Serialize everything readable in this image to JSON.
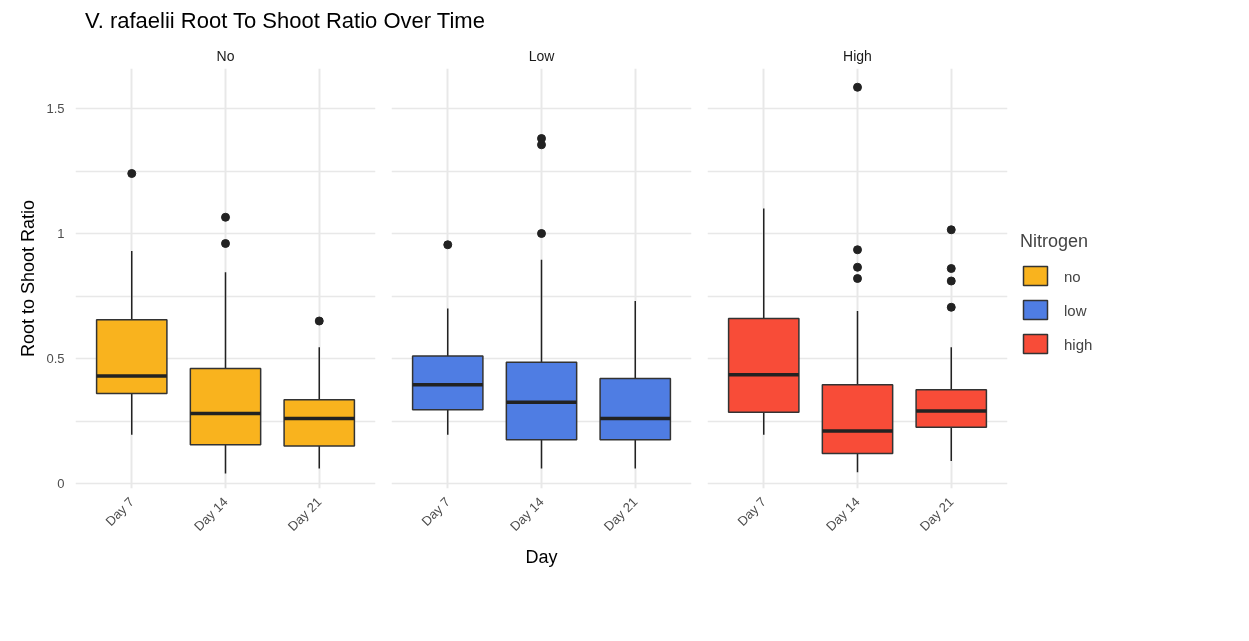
{
  "chart_data": [
    {
      "type": "box",
      "title": "V. rafaelii Root To Shoot Ratio Over Time",
      "subtitle": "No",
      "ylabel": "Root to Shoot Ratio",
      "categories": [
        "Day 7",
        "Day 14",
        "Day 21"
      ],
      "ylim": [
        -0.02,
        1.66
      ],
      "yticks": [
        0,
        {
          "value": 0.25,
          "label": null
        },
        0.5,
        {
          "value": 0.75,
          "label": null
        },
        1,
        {
          "value": 1.25,
          "label": null
        },
        1.5
      ],
      "grid": true,
      "series": [
        {
          "name": "no",
          "color": "#f9b31e",
          "boxes": [
            {
              "low": 0.195,
              "q1": 0.36,
              "median": 0.43,
              "q3": 0.655,
              "high": 0.93,
              "outliers": [
                1.24
              ]
            },
            {
              "low": 0.04,
              "q1": 0.155,
              "median": 0.28,
              "q3": 0.46,
              "high": 0.845,
              "outliers": [
                0.96,
                1.065
              ]
            },
            {
              "low": 0.06,
              "q1": 0.15,
              "median": 0.26,
              "q3": 0.335,
              "high": 0.545,
              "outliers": [
                0.65
              ]
            }
          ]
        }
      ]
    },
    {
      "type": "box",
      "subtitle": "Low",
      "xlabel": "Day",
      "categories": [
        "Day 7",
        "Day 14",
        "Day 21"
      ],
      "ylim": [
        -0.02,
        1.66
      ],
      "yticks": [
        0,
        {
          "value": 0.25,
          "label": null
        },
        0.5,
        {
          "value": 0.75,
          "label": null
        },
        1,
        {
          "value": 1.25,
          "label": null
        },
        1.5
      ],
      "grid": true,
      "tick_labels": "x",
      "series": [
        {
          "name": "low",
          "color": "#4f7de3",
          "boxes": [
            {
              "low": 0.195,
              "q1": 0.295,
              "median": 0.395,
              "q3": 0.51,
              "high": 0.7,
              "outliers": [
                0.955
              ]
            },
            {
              "low": 0.06,
              "q1": 0.175,
              "median": 0.325,
              "q3": 0.485,
              "high": 0.895,
              "outliers": [
                1.0,
                1.355,
                1.38
              ]
            },
            {
              "low": 0.06,
              "q1": 0.175,
              "median": 0.26,
              "q3": 0.42,
              "high": 0.73
            }
          ]
        }
      ]
    },
    {
      "type": "box",
      "subtitle": "High",
      "legend_title": "Nitrogen",
      "legend": "right",
      "categories": [
        "Day 7",
        "Day 14",
        "Day 21"
      ],
      "ylim": [
        -0.02,
        1.66
      ],
      "yticks": [
        0,
        {
          "value": 0.25,
          "label": null
        },
        0.5,
        {
          "value": 0.75,
          "label": null
        },
        1,
        {
          "value": 1.25,
          "label": null
        },
        1.5
      ],
      "grid": true,
      "tick_labels": "x",
      "series": [
        {
          "name": "high",
          "color": "#f84c38",
          "boxes": [
            {
              "low": 0.195,
              "q1": 0.285,
              "median": 0.435,
              "q3": 0.66,
              "high": 1.1
            },
            {
              "low": 0.045,
              "q1": 0.12,
              "median": 0.21,
              "q3": 0.395,
              "high": 0.69,
              "outliers": [
                0.82,
                0.865,
                0.935,
                1.585
              ]
            },
            {
              "low": 0.09,
              "q1": 0.225,
              "median": 0.29,
              "q3": 0.375,
              "high": 0.545,
              "outliers": [
                0.705,
                0.81,
                0.86,
                1.015
              ]
            }
          ]
        }
      ]
    }
  ]
}
